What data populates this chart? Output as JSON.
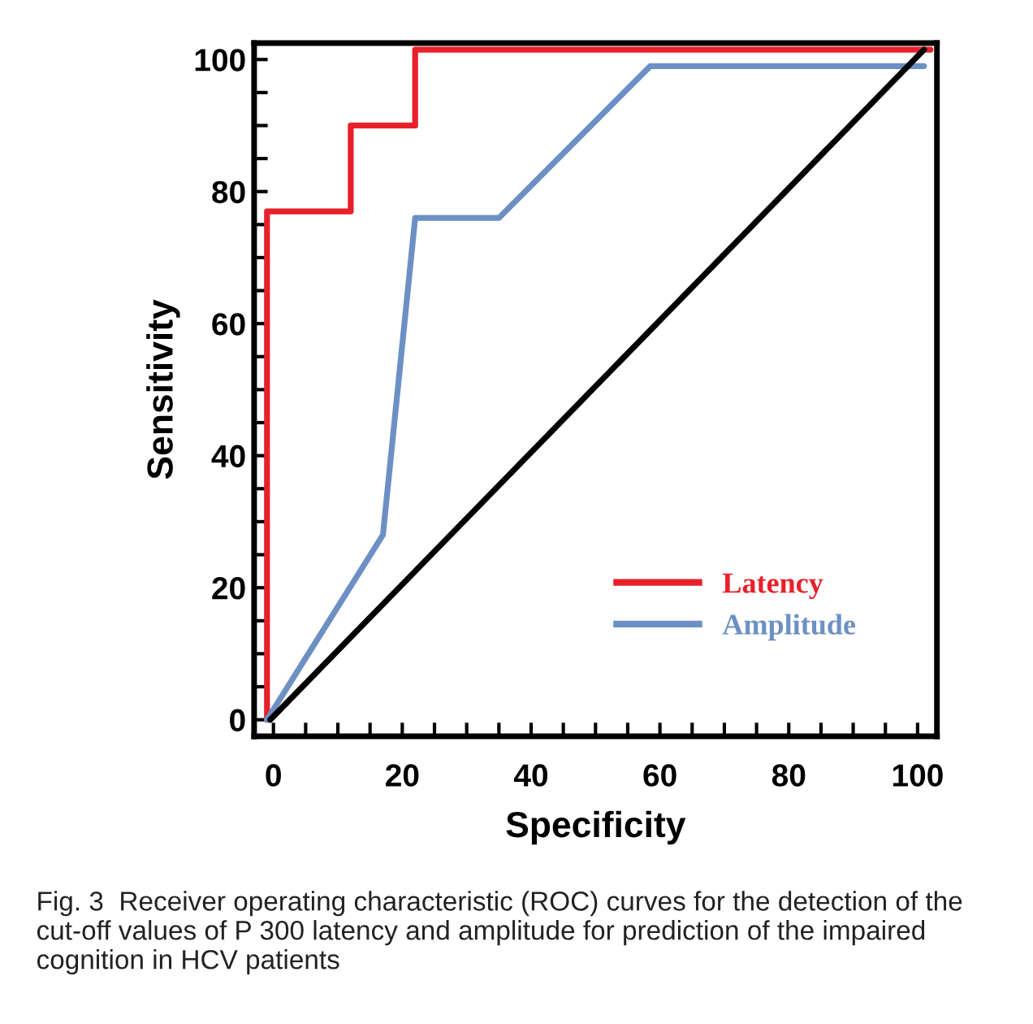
{
  "chart_data": {
    "type": "line",
    "xlabel": "Specificity",
    "ylabel": "Sensitivity",
    "xlim": [
      -3,
      103
    ],
    "ylim": [
      -2.5,
      102.5
    ],
    "xticks": [
      0,
      {
        "value": 5,
        "label": null
      },
      {
        "value": 10,
        "label": null
      },
      {
        "value": 15,
        "label": null
      },
      20,
      {
        "value": 25,
        "label": null
      },
      {
        "value": 30,
        "label": null
      },
      {
        "value": 35,
        "label": null
      },
      40,
      {
        "value": 45,
        "label": null
      },
      {
        "value": 50,
        "label": null
      },
      {
        "value": 55,
        "label": null
      },
      60,
      {
        "value": 65,
        "label": null
      },
      {
        "value": 70,
        "label": null
      },
      {
        "value": 75,
        "label": null
      },
      80,
      {
        "value": 85,
        "label": null
      },
      {
        "value": 90,
        "label": null
      },
      {
        "value": 95,
        "label": null
      },
      100
    ],
    "yticks": [
      0,
      {
        "value": 5,
        "label": null
      },
      {
        "value": 10,
        "label": null
      },
      {
        "value": 15,
        "label": null
      },
      20,
      {
        "value": 25,
        "label": null
      },
      {
        "value": 30,
        "label": null
      },
      {
        "value": 35,
        "label": null
      },
      40,
      {
        "value": 45,
        "label": null
      },
      {
        "value": 50,
        "label": null
      },
      {
        "value": 55,
        "label": null
      },
      60,
      {
        "value": 65,
        "label": null
      },
      {
        "value": 70,
        "label": null
      },
      {
        "value": 75,
        "label": null
      },
      80,
      {
        "value": 85,
        "label": null
      },
      {
        "value": 90,
        "label": null
      },
      {
        "value": 95,
        "label": null
      },
      100
    ],
    "grid": false,
    "legend": "bottom right",
    "marker": "none",
    "line_style": "solid",
    "series": [
      {
        "name": "Latency",
        "color": "#e8202a",
        "x": [
          -1,
          -1,
          12,
          12,
          22,
          22,
          102
        ],
        "values": [
          0,
          77,
          77,
          90,
          90,
          101.5,
          101.5
        ]
      },
      {
        "name": "Amplitude",
        "color": "#6d90c4",
        "x": [
          -1,
          17,
          22,
          35,
          58.5,
          101
        ],
        "values": [
          0,
          28,
          76,
          76,
          99,
          99
        ]
      },
      {
        "color": "#000000",
        "x": [
          -0.5,
          101
        ],
        "values": [
          0,
          101.5
        ]
      }
    ],
    "annotations": [
      "Fig. 3  Receiver operating characteristic (ROC) curves for the detection of the cut-off values of P 300 latency and amplitude for prediction of the impaired cognition in HCV patients"
    ]
  }
}
